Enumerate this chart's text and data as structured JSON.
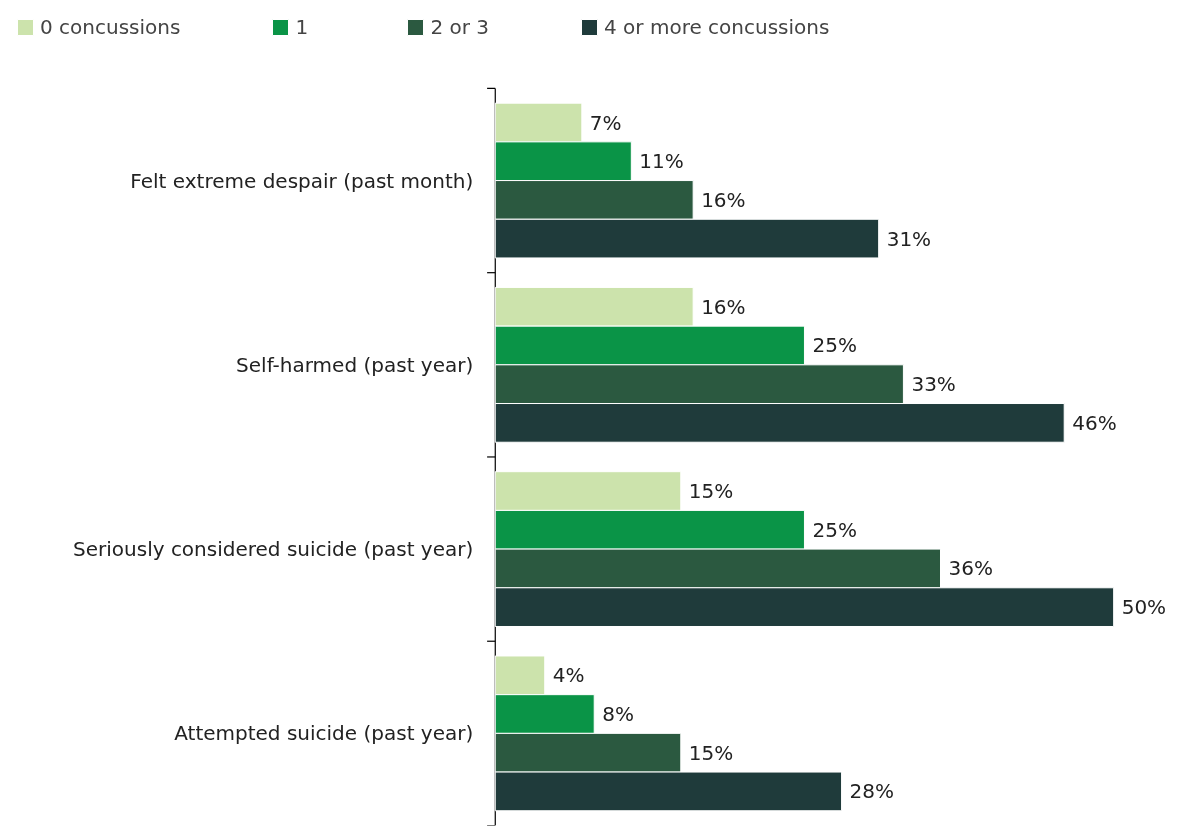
{
  "chart_data": {
    "type": "bar",
    "orientation": "horizontal",
    "categories": [
      "Felt extreme despair (past month)",
      "Self-harmed (past year)",
      "Seriously considered suicide (past year)",
      "Attempted suicide (past year)"
    ],
    "series": [
      {
        "name": "0 concussions",
        "color": "#cce3ac",
        "values": [
          7,
          16,
          15,
          4
        ],
        "value_labels": [
          "7%",
          "16%",
          "15%",
          "4%"
        ]
      },
      {
        "name": "1",
        "color": "#0a9447",
        "values": [
          11,
          25,
          25,
          8
        ],
        "value_labels": [
          "11%",
          "25%",
          "25%",
          "8%"
        ]
      },
      {
        "name": "2 or 3",
        "color": "#2b5940",
        "values": [
          16,
          33,
          36,
          15
        ],
        "value_labels": [
          "16%",
          "33%",
          "36%",
          "15%"
        ]
      },
      {
        "name": "4 or more concussions",
        "color": "#1f3b3b",
        "values": [
          31,
          46,
          50,
          28
        ],
        "value_labels": [
          "31%",
          "46%",
          "50%",
          "28%"
        ]
      }
    ],
    "legend": "top",
    "tick_labels": "y"
  }
}
